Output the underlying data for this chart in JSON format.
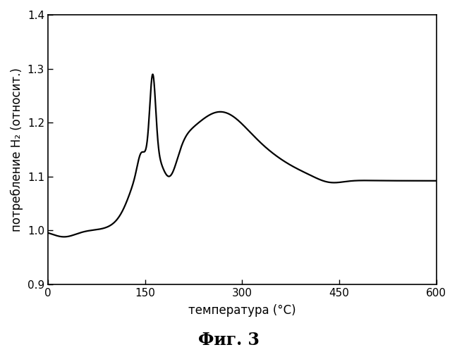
{
  "xlabel": "температура (°C)",
  "ylabel": "потребление H₂ (относит.)",
  "caption": "Фиг. 3",
  "xlim": [
    0,
    600
  ],
  "ylim": [
    0.9,
    1.4
  ],
  "xticks": [
    0,
    150,
    300,
    450,
    600
  ],
  "yticks": [
    0.9,
    1.0,
    1.1,
    1.2,
    1.3,
    1.4
  ],
  "line_color": "#000000",
  "line_width": 1.6,
  "background_color": "#ffffff",
  "fig_width": 6.48,
  "fig_height": 5.0,
  "dpi": 100
}
